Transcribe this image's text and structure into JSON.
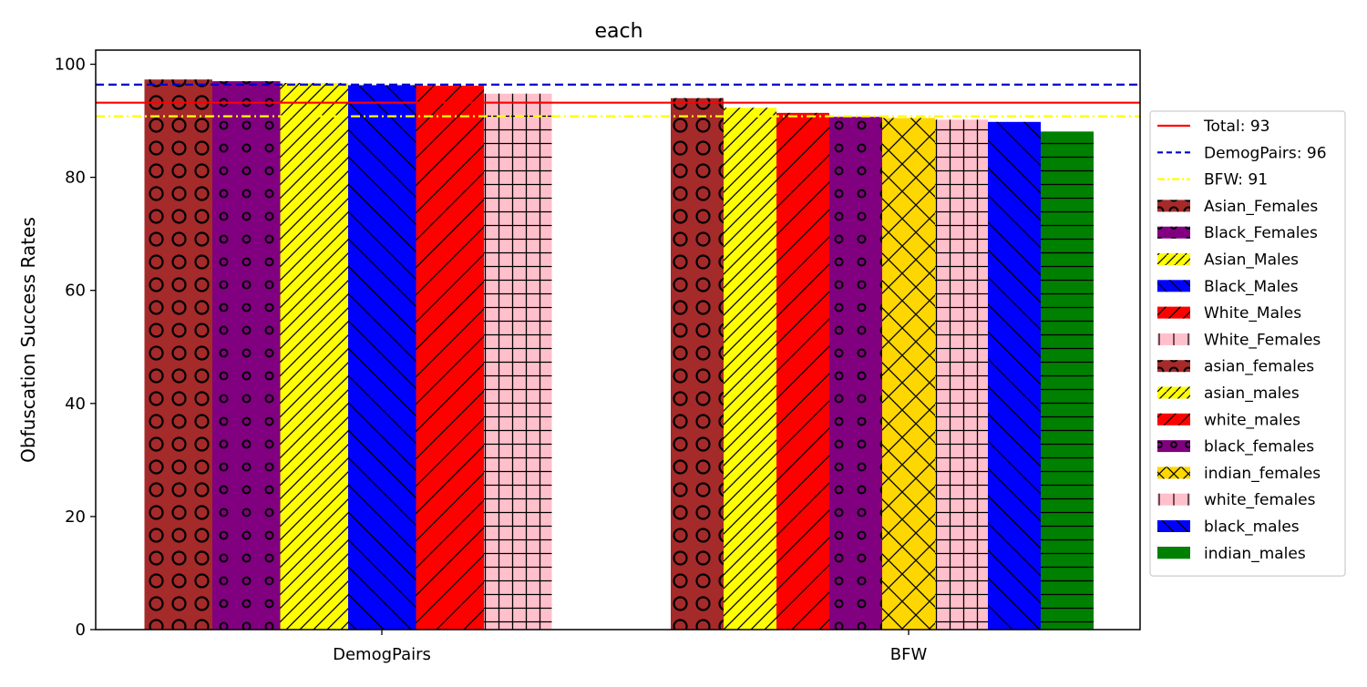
{
  "chart_data": {
    "type": "bar",
    "title": "each",
    "xlabel": "",
    "ylabel": "Obfuscation Success Rates",
    "ylim": [
      0,
      102.5
    ],
    "y_ticks": [
      0,
      20,
      40,
      60,
      80,
      100
    ],
    "categories": [
      "DemogPairs",
      "BFW"
    ],
    "grid": false,
    "legend_placement": "center-right outside",
    "groups": [
      {
        "category": "DemogPairs",
        "bars": [
          {
            "name": "Asian_Females",
            "value": 97.3,
            "color": "#a52a2a",
            "hatch": "big-circles"
          },
          {
            "name": "Black_Females",
            "value": 97.0,
            "color": "#800080",
            "hatch": "small-circles"
          },
          {
            "name": "Asian_Males",
            "value": 96.7,
            "color": "#ffff00",
            "hatch": "forward-diagonal"
          },
          {
            "name": "Black_Males",
            "value": 96.3,
            "color": "#0000ff",
            "hatch": "back-diagonal"
          },
          {
            "name": "White_Males",
            "value": 96.2,
            "color": "#ff0000",
            "hatch": "forward-diagonal-wide"
          },
          {
            "name": "White_Females",
            "value": 94.8,
            "color": "#ffc0cb",
            "hatch": "grid"
          }
        ]
      },
      {
        "category": "BFW",
        "bars": [
          {
            "name": "asian_females",
            "value": 94.0,
            "color": "#a52a2a",
            "hatch": "big-circles"
          },
          {
            "name": "asian_males",
            "value": 92.3,
            "color": "#ffff00",
            "hatch": "forward-diagonal"
          },
          {
            "name": "white_males",
            "value": 91.4,
            "color": "#ff0000",
            "hatch": "forward-diagonal-wide"
          },
          {
            "name": "black_females",
            "value": 90.7,
            "color": "#800080",
            "hatch": "small-circles"
          },
          {
            "name": "indian_females",
            "value": 90.5,
            "color": "#ffd700",
            "hatch": "cross-diagonal"
          },
          {
            "name": "white_females",
            "value": 90.2,
            "color": "#ffc0cb",
            "hatch": "grid"
          },
          {
            "name": "black_males",
            "value": 89.8,
            "color": "#0000ff",
            "hatch": "back-diagonal"
          },
          {
            "name": "indian_males",
            "value": 88.1,
            "color": "#008000",
            "hatch": "horizontal"
          }
        ]
      }
    ],
    "reference_lines": [
      {
        "name": "Total: 93",
        "value": 93.2,
        "color": "#ff0000",
        "style": "solid"
      },
      {
        "name": "DemogPairs: 96",
        "value": 96.4,
        "color": "#0000cc",
        "style": "dashed"
      },
      {
        "name": "BFW: 91",
        "value": 90.8,
        "color": "#ffff00",
        "style": "dashdot"
      }
    ],
    "legend": [
      {
        "label": "Total: 93",
        "kind": "line",
        "color": "#ff0000",
        "style": "solid"
      },
      {
        "label": "DemogPairs: 96",
        "kind": "line",
        "color": "#0000cc",
        "style": "dashed"
      },
      {
        "label": "BFW: 91",
        "kind": "line",
        "color": "#ffff00",
        "style": "dashdot"
      },
      {
        "label": "Asian_Females",
        "kind": "patch",
        "color": "#a52a2a",
        "hatch": "big-circles"
      },
      {
        "label": "Black_Females",
        "kind": "patch",
        "color": "#800080",
        "hatch": "small-circles"
      },
      {
        "label": "Asian_Males",
        "kind": "patch",
        "color": "#ffff00",
        "hatch": "forward-diagonal"
      },
      {
        "label": "Black_Males",
        "kind": "patch",
        "color": "#0000ff",
        "hatch": "back-diagonal"
      },
      {
        "label": "White_Males",
        "kind": "patch",
        "color": "#ff0000",
        "hatch": "forward-diagonal-wide"
      },
      {
        "label": "White_Females",
        "kind": "patch",
        "color": "#ffc0cb",
        "hatch": "grid"
      },
      {
        "label": "asian_females",
        "kind": "patch",
        "color": "#a52a2a",
        "hatch": "big-circles"
      },
      {
        "label": "asian_males",
        "kind": "patch",
        "color": "#ffff00",
        "hatch": "forward-diagonal"
      },
      {
        "label": "white_males",
        "kind": "patch",
        "color": "#ff0000",
        "hatch": "forward-diagonal-wide"
      },
      {
        "label": "black_females",
        "kind": "patch",
        "color": "#800080",
        "hatch": "small-circles"
      },
      {
        "label": "indian_females",
        "kind": "patch",
        "color": "#ffd700",
        "hatch": "cross-diagonal"
      },
      {
        "label": "white_females",
        "kind": "patch",
        "color": "#ffc0cb",
        "hatch": "grid"
      },
      {
        "label": "black_males",
        "kind": "patch",
        "color": "#0000ff",
        "hatch": "back-diagonal"
      },
      {
        "label": "indian_males",
        "kind": "patch",
        "color": "#008000",
        "hatch": "horizontal"
      }
    ]
  }
}
